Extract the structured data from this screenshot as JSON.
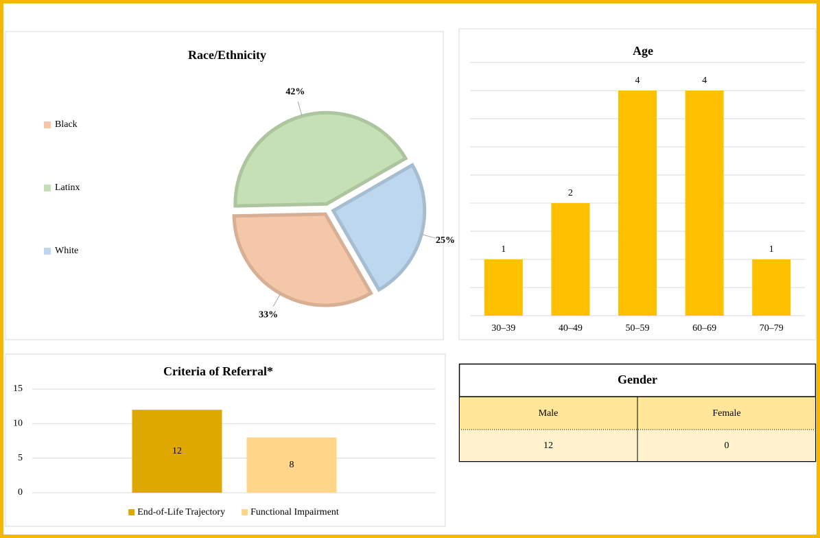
{
  "chart_data": [
    {
      "type": "pie",
      "title": "Race/Ethnicity",
      "categories": [
        "Black",
        "Latinx",
        "White"
      ],
      "values": [
        33,
        42,
        25
      ],
      "value_labels": [
        "33%",
        "42%",
        "25%"
      ],
      "colors": [
        "#f4c7a8",
        "#c5e0b4",
        "#bdd7ee"
      ],
      "legend": "left"
    },
    {
      "type": "bar",
      "title": "Age",
      "categories": [
        "30–39",
        "40–49",
        "50–59",
        "60–69",
        "70–79"
      ],
      "values": [
        1,
        2,
        4,
        4,
        1
      ],
      "color": "#ffc000",
      "ylim": [
        0,
        4.5
      ],
      "yticks": [
        0,
        0.5,
        1,
        1.5,
        2,
        2.5,
        3,
        3.5,
        4,
        4.5
      ],
      "grid": true
    },
    {
      "type": "bar",
      "title": "Criteria of Referral*",
      "categories": [
        null
      ],
      "series": [
        {
          "name": "End-of-Life Trajectory",
          "color": "#dfa800",
          "values": [
            12
          ]
        },
        {
          "name": "Functional Impairment",
          "color": "#ffd58a",
          "values": [
            8
          ]
        }
      ],
      "ylim": [
        0,
        15
      ],
      "yticks": [
        0,
        5,
        10,
        15
      ],
      "grid": true,
      "legend": "bottom"
    }
  ],
  "table": {
    "title": "Gender",
    "columns": [
      "Male",
      "Female"
    ],
    "rows": [
      [
        12,
        0
      ]
    ]
  }
}
